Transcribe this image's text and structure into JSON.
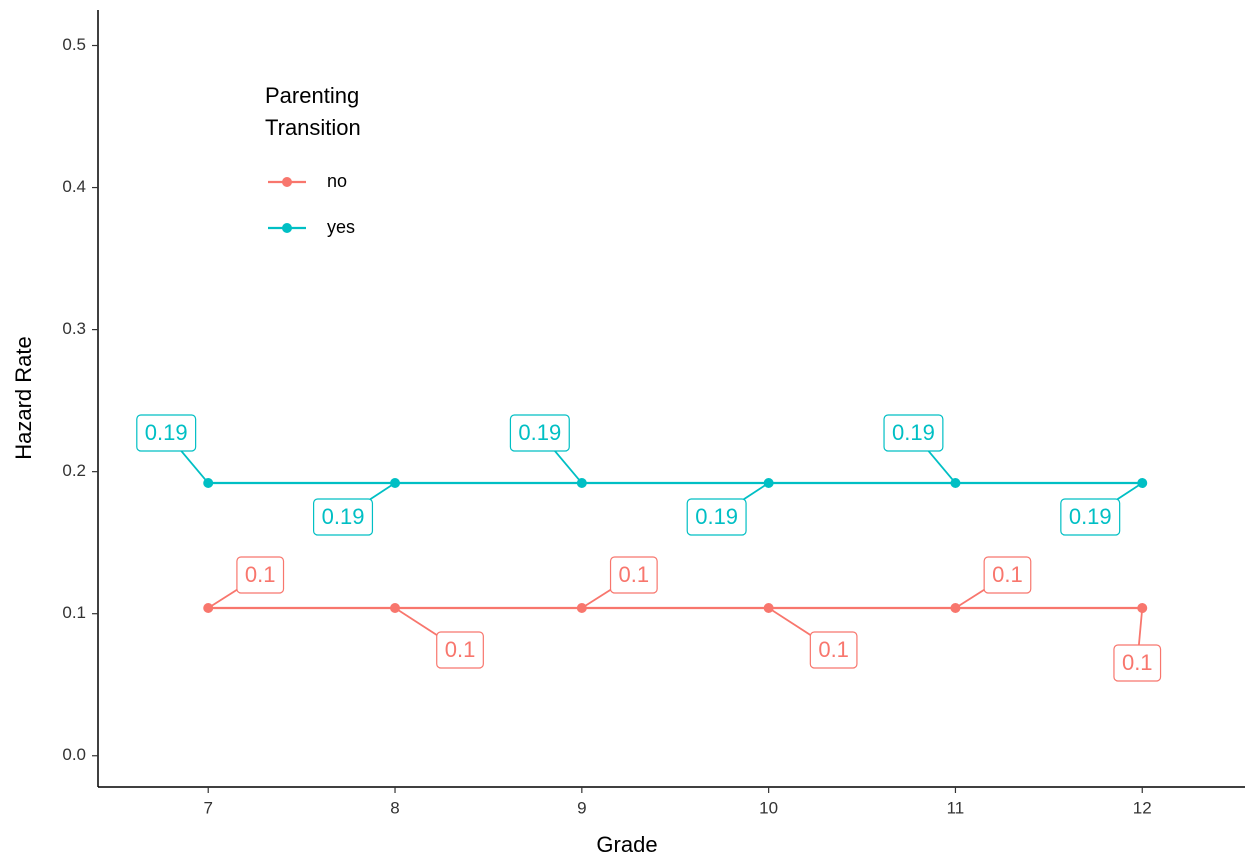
{
  "chart_data": {
    "type": "line",
    "x_label": "Grade",
    "y_label": "Hazard Rate",
    "legend_title": "Parenting\nTransition",
    "x": [
      7,
      8,
      9,
      10,
      11,
      12
    ],
    "series": [
      {
        "name": "no",
        "color": "#F8766D",
        "values": [
          0.104,
          0.104,
          0.104,
          0.104,
          0.104,
          0.104
        ],
        "value_labels": [
          "0.1",
          "0.1",
          "0.1",
          "0.1",
          "0.1",
          "0.1"
        ]
      },
      {
        "name": "yes",
        "color": "#00BFC4",
        "values": [
          0.192,
          0.192,
          0.192,
          0.192,
          0.192,
          0.192
        ],
        "value_labels": [
          "0.19",
          "0.19",
          "0.19",
          "0.19",
          "0.19",
          "0.19"
        ]
      }
    ],
    "xlim": [
      6.41,
      12.55
    ],
    "ylim": [
      -0.022,
      0.525
    ],
    "xticks": [
      7,
      8,
      9,
      10,
      11,
      12
    ],
    "yticks": [
      {
        "value": 0,
        "label": "0.0"
      },
      0.1,
      0.2,
      0.3,
      0.4,
      0.5
    ],
    "grid": false,
    "legend": "top-left"
  }
}
